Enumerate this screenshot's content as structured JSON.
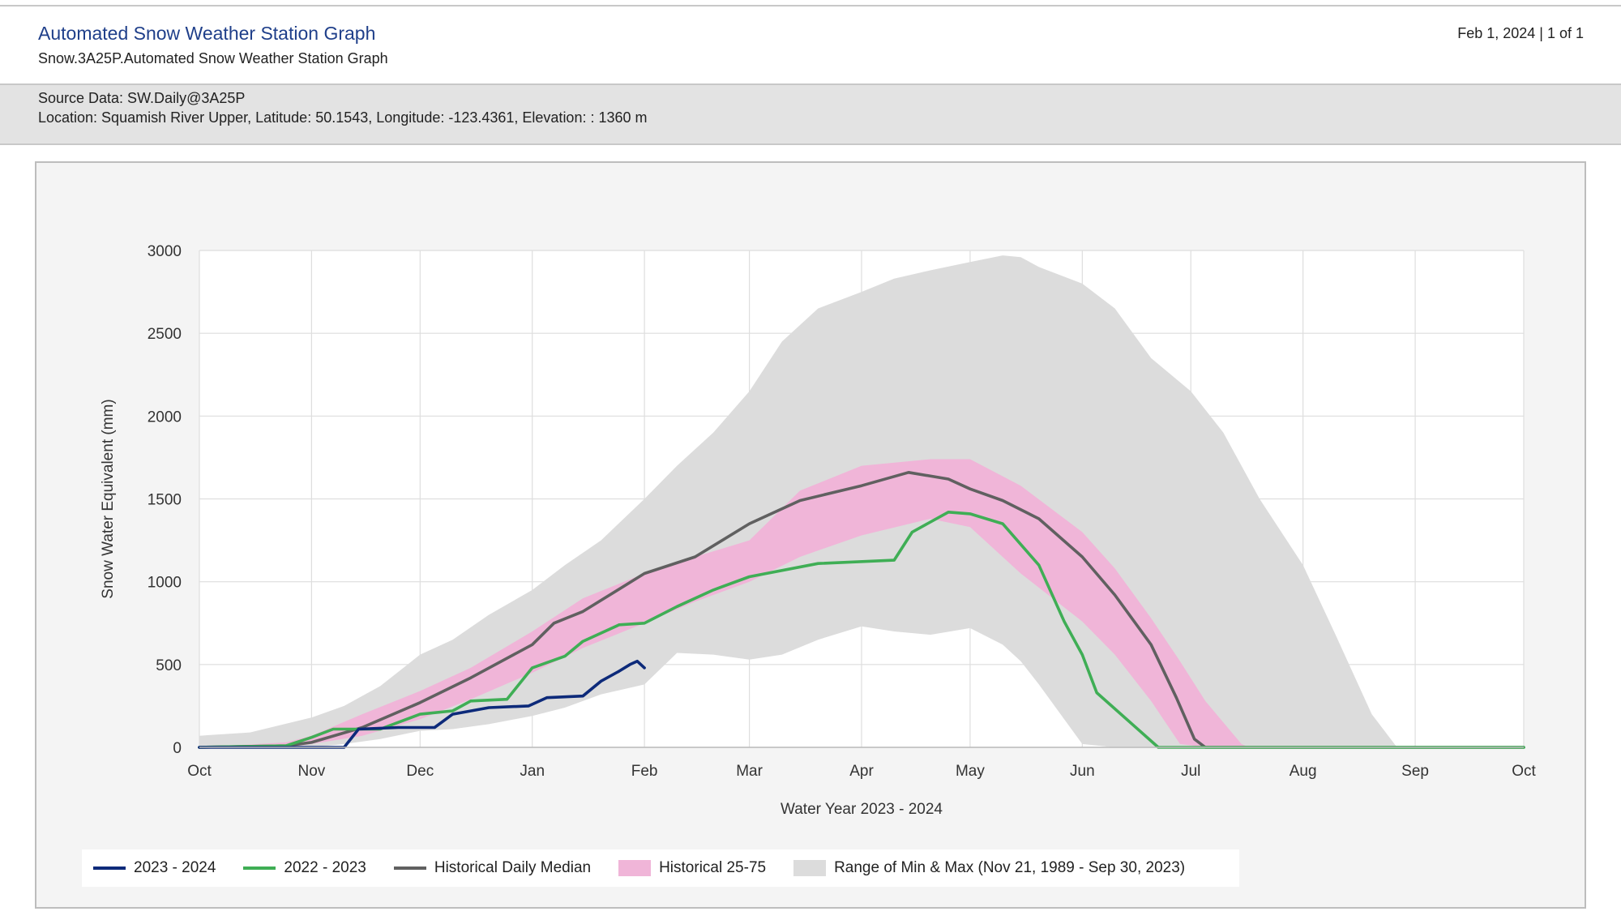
{
  "header": {
    "title": "Automated Snow Weather Station Graph",
    "subtitle": "Snow.3A25P.Automated Snow Weather Station Graph",
    "date_page": "Feb 1, 2024 | 1 of 1"
  },
  "info": {
    "source": "Source Data: SW.Daily@3A25P",
    "location": "Location: Squamish River Upper, Latitude: 50.1543, Longitude: -123.4361, Elevation: : 1360 m"
  },
  "colors": {
    "current": "#0d2a7a",
    "previous": "#3fae55",
    "median": "#606060",
    "band_25_75": "#f0b5d8",
    "range_min_max": "#dcdcdc"
  },
  "chart_data": {
    "type": "area",
    "xlabel": "Water Year 2023 - 2024",
    "ylabel": "Snow Water Equivalent (mm)",
    "ylim": [
      0,
      3000
    ],
    "yticks": [
      0,
      500,
      1000,
      1500,
      2000,
      2500,
      3000
    ],
    "xlim": [
      "2023-10-01",
      "2024-10-01"
    ],
    "xticks": [
      {
        "date": "2023-10-01",
        "label": "Oct"
      },
      {
        "date": "2023-11-01",
        "label": "Nov"
      },
      {
        "date": "2023-12-01",
        "label": "Dec"
      },
      {
        "date": "2024-01-01",
        "label": "Jan"
      },
      {
        "date": "2024-02-01",
        "label": "Feb"
      },
      {
        "date": "2024-03-01",
        "label": "Mar"
      },
      {
        "date": "2024-04-01",
        "label": "Apr"
      },
      {
        "date": "2024-05-01",
        "label": "May"
      },
      {
        "date": "2024-06-01",
        "label": "Jun"
      },
      {
        "date": "2024-07-01",
        "label": "Jul"
      },
      {
        "date": "2024-08-01",
        "label": "Aug"
      },
      {
        "date": "2024-09-01",
        "label": "Sep"
      },
      {
        "date": "2024-10-01",
        "label": "Oct"
      }
    ],
    "grid": true,
    "legend_position": "bottom",
    "series": [
      {
        "name": "Range of Min & Max (Nov 21, 1989 - Sep 30, 2023)",
        "kind": "band",
        "points": [
          [
            "2023-10-01",
            0,
            70
          ],
          [
            "2023-10-15",
            0,
            90
          ],
          [
            "2023-11-01",
            0,
            180
          ],
          [
            "2023-11-10",
            20,
            250
          ],
          [
            "2023-11-20",
            50,
            370
          ],
          [
            "2023-12-01",
            100,
            560
          ],
          [
            "2023-12-10",
            110,
            650
          ],
          [
            "2023-12-20",
            140,
            800
          ],
          [
            "2024-01-01",
            190,
            950
          ],
          [
            "2024-01-10",
            240,
            1100
          ],
          [
            "2024-01-20",
            320,
            1250
          ],
          [
            "2024-02-01",
            380,
            1500
          ],
          [
            "2024-02-10",
            570,
            1700
          ],
          [
            "2024-02-20",
            560,
            1900
          ],
          [
            "2024-03-01",
            530,
            2150
          ],
          [
            "2024-03-10",
            560,
            2450
          ],
          [
            "2024-03-20",
            650,
            2650
          ],
          [
            "2024-04-01",
            730,
            2750
          ],
          [
            "2024-04-10",
            700,
            2830
          ],
          [
            "2024-04-20",
            680,
            2880
          ],
          [
            "2024-05-01",
            720,
            2930
          ],
          [
            "2024-05-10",
            620,
            2970
          ],
          [
            "2024-05-15",
            520,
            2960
          ],
          [
            "2024-05-20",
            380,
            2900
          ],
          [
            "2024-06-01",
            20,
            2800
          ],
          [
            "2024-06-10",
            0,
            2650
          ],
          [
            "2024-06-20",
            0,
            2350
          ],
          [
            "2024-07-01",
            0,
            2150
          ],
          [
            "2024-07-10",
            0,
            1900
          ],
          [
            "2024-07-20",
            0,
            1500
          ],
          [
            "2024-08-01",
            0,
            1100
          ],
          [
            "2024-08-10",
            0,
            680
          ],
          [
            "2024-08-20",
            0,
            200
          ],
          [
            "2024-08-27",
            0,
            0
          ],
          [
            "2024-10-01",
            0,
            0
          ]
        ]
      },
      {
        "name": "Historical 25-75",
        "kind": "band",
        "points": [
          [
            "2023-10-01",
            0,
            0
          ],
          [
            "2023-10-25",
            0,
            30
          ],
          [
            "2023-11-01",
            20,
            70
          ],
          [
            "2023-11-15",
            70,
            200
          ],
          [
            "2023-12-01",
            170,
            340
          ],
          [
            "2023-12-15",
            290,
            480
          ],
          [
            "2024-01-01",
            450,
            700
          ],
          [
            "2024-01-15",
            600,
            900
          ],
          [
            "2024-02-01",
            750,
            1050
          ],
          [
            "2024-02-15",
            880,
            1150
          ],
          [
            "2024-03-01",
            1000,
            1250
          ],
          [
            "2024-03-15",
            1150,
            1550
          ],
          [
            "2024-04-01",
            1280,
            1700
          ],
          [
            "2024-04-20",
            1380,
            1740
          ],
          [
            "2024-05-01",
            1330,
            1740
          ],
          [
            "2024-05-15",
            1050,
            1580
          ],
          [
            "2024-06-01",
            760,
            1300
          ],
          [
            "2024-06-10",
            560,
            1080
          ],
          [
            "2024-06-20",
            280,
            780
          ],
          [
            "2024-06-28",
            20,
            520
          ],
          [
            "2024-07-05",
            0,
            280
          ],
          [
            "2024-07-15",
            0,
            20
          ],
          [
            "2024-07-17",
            0,
            0
          ],
          [
            "2024-10-01",
            0,
            0
          ]
        ]
      },
      {
        "name": "Historical Daily Median",
        "kind": "line",
        "points": [
          [
            "2023-10-01",
            0
          ],
          [
            "2023-10-25",
            10
          ],
          [
            "2023-11-01",
            30
          ],
          [
            "2023-11-15",
            120
          ],
          [
            "2023-12-01",
            270
          ],
          [
            "2023-12-15",
            420
          ],
          [
            "2024-01-01",
            620
          ],
          [
            "2024-01-07",
            750
          ],
          [
            "2024-01-15",
            820
          ],
          [
            "2024-02-01",
            1050
          ],
          [
            "2024-02-15",
            1150
          ],
          [
            "2024-03-01",
            1350
          ],
          [
            "2024-03-15",
            1490
          ],
          [
            "2024-04-01",
            1580
          ],
          [
            "2024-04-14",
            1660
          ],
          [
            "2024-04-25",
            1620
          ],
          [
            "2024-05-01",
            1560
          ],
          [
            "2024-05-10",
            1490
          ],
          [
            "2024-05-20",
            1380
          ],
          [
            "2024-06-01",
            1150
          ],
          [
            "2024-06-10",
            920
          ],
          [
            "2024-06-20",
            620
          ],
          [
            "2024-06-27",
            300
          ],
          [
            "2024-07-02",
            50
          ],
          [
            "2024-07-05",
            0
          ],
          [
            "2024-10-01",
            0
          ]
        ]
      },
      {
        "name": "2022 - 2023",
        "kind": "line",
        "points": [
          [
            "2023-10-01",
            0
          ],
          [
            "2023-10-25",
            10
          ],
          [
            "2023-11-01",
            60
          ],
          [
            "2023-11-07",
            110
          ],
          [
            "2023-11-20",
            110
          ],
          [
            "2023-12-01",
            200
          ],
          [
            "2023-12-10",
            220
          ],
          [
            "2023-12-15",
            280
          ],
          [
            "2023-12-25",
            290
          ],
          [
            "2024-01-01",
            480
          ],
          [
            "2024-01-10",
            550
          ],
          [
            "2024-01-15",
            640
          ],
          [
            "2024-01-25",
            740
          ],
          [
            "2024-02-01",
            750
          ],
          [
            "2024-02-10",
            850
          ],
          [
            "2024-02-20",
            950
          ],
          [
            "2024-03-01",
            1030
          ],
          [
            "2024-03-20",
            1110
          ],
          [
            "2024-04-10",
            1130
          ],
          [
            "2024-04-15",
            1300
          ],
          [
            "2024-04-25",
            1420
          ],
          [
            "2024-05-01",
            1410
          ],
          [
            "2024-05-10",
            1350
          ],
          [
            "2024-05-20",
            1100
          ],
          [
            "2024-05-27",
            760
          ],
          [
            "2024-06-01",
            560
          ],
          [
            "2024-06-05",
            330
          ],
          [
            "2024-06-22",
            0
          ],
          [
            "2024-10-01",
            0
          ]
        ]
      },
      {
        "name": "2023 - 2024",
        "kind": "line",
        "points": [
          [
            "2023-10-01",
            0
          ],
          [
            "2023-11-10",
            0
          ],
          [
            "2023-11-14",
            110
          ],
          [
            "2023-11-25",
            120
          ],
          [
            "2023-12-05",
            120
          ],
          [
            "2023-12-10",
            200
          ],
          [
            "2023-12-20",
            240
          ],
          [
            "2023-12-31",
            250
          ],
          [
            "2024-01-05",
            300
          ],
          [
            "2024-01-15",
            310
          ],
          [
            "2024-01-20",
            400
          ],
          [
            "2024-01-25",
            460
          ],
          [
            "2024-01-28",
            500
          ],
          [
            "2024-01-30",
            520
          ],
          [
            "2024-02-01",
            480
          ]
        ]
      }
    ]
  },
  "legend": [
    {
      "label": "2023 - 2024",
      "type": "line",
      "color": "#0d2a7a"
    },
    {
      "label": "2022 - 2023",
      "type": "line",
      "color": "#3fae55"
    },
    {
      "label": "Historical Daily Median",
      "type": "line",
      "color": "#606060"
    },
    {
      "label": "Historical 25-75",
      "type": "box",
      "color": "#f0b5d8"
    },
    {
      "label": "Range of Min & Max (Nov 21, 1989 - Sep 30, 2023)",
      "type": "box",
      "color": "#dcdcdc"
    }
  ]
}
